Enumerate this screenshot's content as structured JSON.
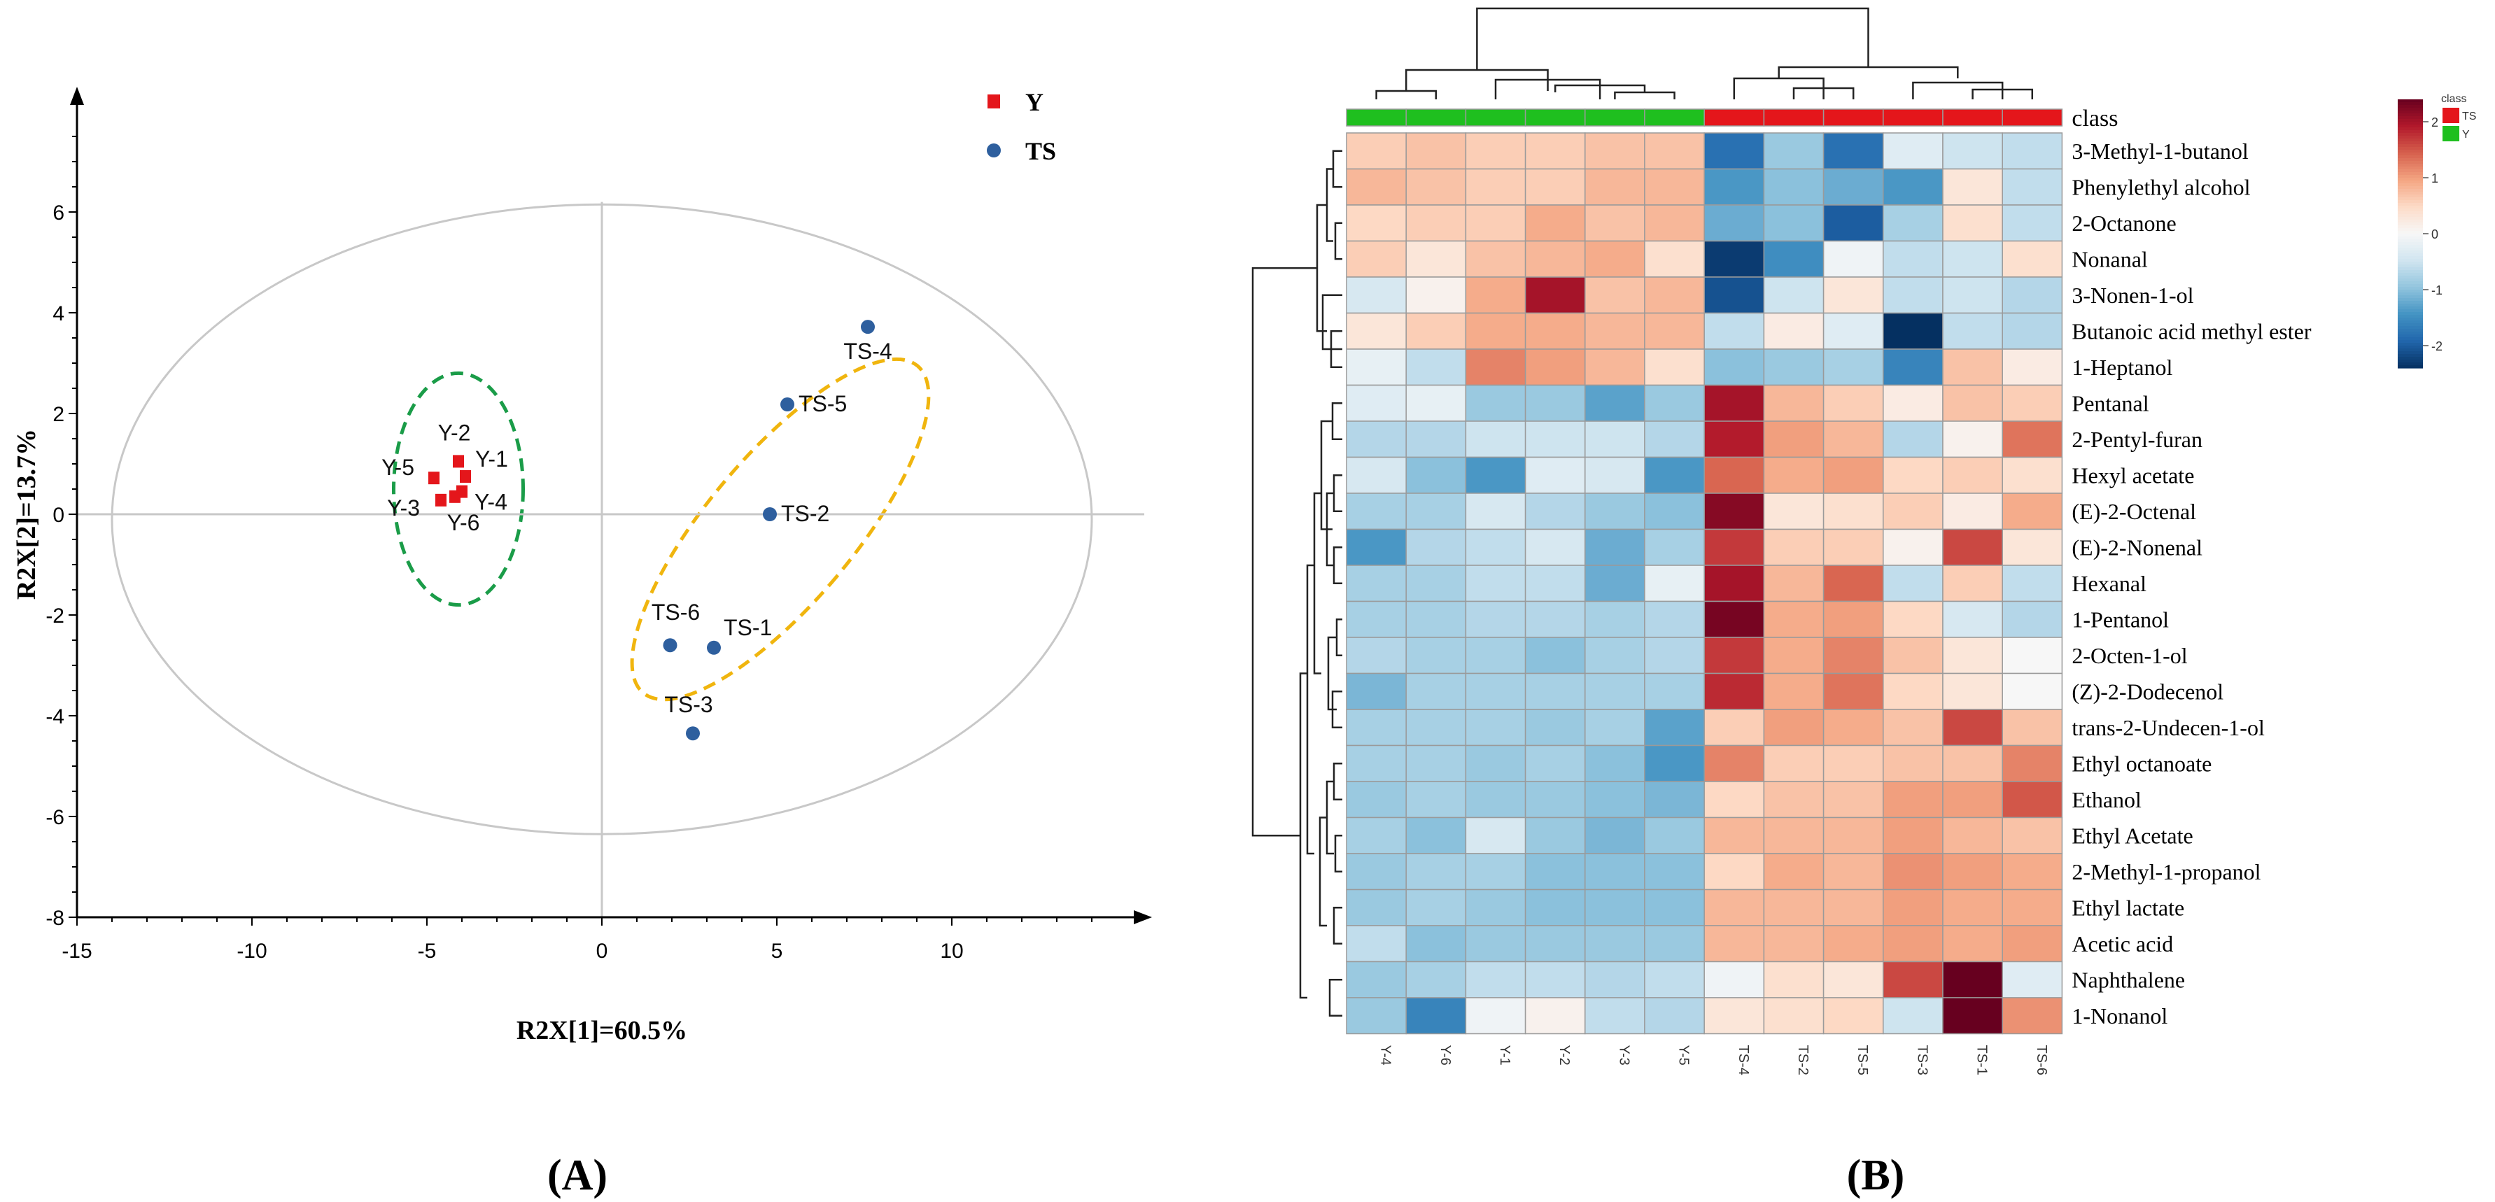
{
  "panels": {
    "a_label": "(A)",
    "b_label": "(B)"
  },
  "chart_data": [
    {
      "type": "scatter",
      "title": "",
      "xlabel": "R2X[1]=60.5%",
      "ylabel": "R2X[2]=13.7%",
      "xlim": [
        -15,
        15
      ],
      "ylim": [
        -8,
        8
      ],
      "xticks": [
        "-15",
        "-10",
        "-5",
        "0",
        "5",
        "10"
      ],
      "xtick_values": [
        -15,
        -10,
        -5,
        0,
        5,
        10
      ],
      "yticks": [
        "6",
        "4",
        "2",
        "0",
        "-2",
        "-4",
        "-6",
        "-8"
      ],
      "ytick_values": [
        6,
        4,
        2,
        0,
        -2,
        -4,
        -6,
        -8
      ],
      "grid": false,
      "legend_position": "top-right",
      "series": [
        {
          "name": "Y",
          "color": "#e4161b",
          "marker": "square",
          "points": [
            {
              "label": "Y-1",
              "x": -3.9,
              "y": 0.75
            },
            {
              "label": "Y-2",
              "x": -4.1,
              "y": 1.05
            },
            {
              "label": "Y-3",
              "x": -4.6,
              "y": 0.28
            },
            {
              "label": "Y-4",
              "x": -4.0,
              "y": 0.45
            },
            {
              "label": "Y-5",
              "x": -4.8,
              "y": 0.72
            },
            {
              "label": "Y-6",
              "x": -4.2,
              "y": 0.35
            }
          ]
        },
        {
          "name": "TS",
          "color": "#2e5f9e",
          "marker": "circle",
          "points": [
            {
              "label": "TS-1",
              "x": 3.2,
              "y": -2.65
            },
            {
              "label": "TS-2",
              "x": 4.8,
              "y": 0.0
            },
            {
              "label": "TS-3",
              "x": 2.6,
              "y": -4.35
            },
            {
              "label": "TS-4",
              "x": 7.6,
              "y": 3.72
            },
            {
              "label": "TS-5",
              "x": 5.3,
              "y": 2.18
            },
            {
              "label": "TS-6",
              "x": 1.95,
              "y": -2.6
            }
          ]
        }
      ],
      "ellipses": [
        {
          "cx": 0,
          "cy": -0.1,
          "rx": 14,
          "ry": 6.25,
          "color": "#c8c8c8",
          "style": "solid"
        },
        {
          "cx": -4.1,
          "cy": 0.5,
          "rx": 1.85,
          "ry": 2.3,
          "color": "#1a9c48",
          "style": "dashed"
        },
        {
          "cx": 5.1,
          "cy": -0.3,
          "rx": 3.3,
          "ry": 5.0,
          "color": "#f0b50e",
          "style": "dashed",
          "rotation_deg": 40
        }
      ]
    },
    {
      "type": "heatmap",
      "title": "",
      "columns": [
        "Y-4",
        "Y-6",
        "Y-1",
        "Y-2",
        "Y-3",
        "Y-5",
        "TS-4",
        "TS-2",
        "TS-5",
        "TS-3",
        "TS-1",
        "TS-6"
      ],
      "column_classes": [
        "Y",
        "Y",
        "Y",
        "Y",
        "Y",
        "Y",
        "TS",
        "TS",
        "TS",
        "TS",
        "TS",
        "TS"
      ],
      "class_label": "class",
      "legend": {
        "title": "class",
        "entries": [
          {
            "name": "TS",
            "color": "#e4161b"
          },
          {
            "name": "Y",
            "color": "#1fbf1f"
          }
        ]
      },
      "colorbar": {
        "range": [
          -2.4,
          2.4
        ],
        "ticks": [
          "2",
          "1",
          "0",
          "-1",
          "-2"
        ],
        "tick_values": [
          2,
          1,
          0,
          -1,
          -2
        ],
        "colors": [
          "#053061",
          "#2166ac",
          "#4393c3",
          "#92c5de",
          "#d1e5f0",
          "#f7f7f7",
          "#fddbc7",
          "#f4a582",
          "#d6604d",
          "#b2182b",
          "#67001f"
        ]
      },
      "rows": [
        "3-Methyl-1-butanol",
        "Phenylethyl alcohol",
        "2-Octanone",
        "Nonanal",
        "3-Nonen-1-ol",
        "Butanoic acid methyl ester",
        "1-Heptanol",
        "Pentanal",
        "2-Pentyl-furan",
        "Hexyl acetate",
        "(E)-2-Octenal",
        "(E)-2-Nonenal",
        "Hexanal",
        "1-Pentanol",
        "2-Octen-1-ol",
        "(Z)-2-Dodecenol",
        "trans-2-Undecen-1-ol",
        "Ethyl octanoate",
        "Ethanol",
        "Ethyl Acetate",
        "2-Methyl-1-propanol",
        "Ethyl lactate",
        "Acetic acid",
        "Naphthalene",
        "1-Nonanol"
      ],
      "values": [
        [
          0.6,
          0.7,
          0.6,
          0.6,
          0.7,
          0.7,
          -1.8,
          -0.9,
          -1.8,
          -0.3,
          -0.5,
          -0.6
        ],
        [
          0.8,
          0.7,
          0.6,
          0.6,
          0.8,
          0.8,
          -1.4,
          -1.0,
          -1.2,
          -1.4,
          0.3,
          -0.6
        ],
        [
          0.5,
          0.6,
          0.6,
          0.9,
          0.7,
          0.8,
          -1.2,
          -1.0,
          -2.0,
          -0.8,
          0.4,
          -0.6
        ],
        [
          0.6,
          0.3,
          0.7,
          0.8,
          0.9,
          0.4,
          -2.3,
          -1.5,
          -0.1,
          -0.6,
          -0.5,
          0.4
        ],
        [
          -0.4,
          0.1,
          0.9,
          2.0,
          0.7,
          0.8,
          -2.1,
          -0.5,
          0.3,
          -0.6,
          -0.5,
          -0.7
        ],
        [
          0.3,
          0.6,
          0.9,
          0.9,
          0.8,
          0.8,
          -0.6,
          0.2,
          -0.3,
          -2.5,
          -0.6,
          -0.7
        ],
        [
          -0.2,
          -0.6,
          1.2,
          1.0,
          0.8,
          0.4,
          -1.0,
          -0.9,
          -0.8,
          -1.6,
          0.7,
          0.2
        ],
        [
          -0.3,
          -0.2,
          -0.9,
          -0.9,
          -1.3,
          -0.9,
          2.0,
          0.8,
          0.6,
          0.2,
          0.7,
          0.6
        ],
        [
          -0.7,
          -0.7,
          -0.5,
          -0.5,
          -0.5,
          -0.7,
          1.9,
          1.0,
          0.8,
          -0.7,
          0.1,
          1.3
        ],
        [
          -0.4,
          -1.0,
          -1.4,
          -0.3,
          -0.4,
          -1.4,
          1.4,
          0.9,
          1.0,
          0.5,
          0.6,
          0.4
        ],
        [
          -0.8,
          -0.8,
          -0.4,
          -0.7,
          -0.9,
          -1.0,
          2.2,
          0.3,
          0.4,
          0.6,
          0.2,
          0.9
        ],
        [
          -1.4,
          -0.7,
          -0.6,
          -0.4,
          -1.2,
          -0.8,
          1.7,
          0.6,
          0.6,
          0.1,
          1.6,
          0.3
        ],
        [
          -0.8,
          -0.8,
          -0.6,
          -0.6,
          -1.2,
          -0.2,
          2.0,
          0.8,
          1.4,
          -0.6,
          0.6,
          -0.6
        ],
        [
          -0.8,
          -0.8,
          -0.7,
          -0.7,
          -0.8,
          -0.7,
          2.3,
          0.9,
          1.0,
          0.5,
          -0.4,
          -0.7
        ],
        [
          -0.7,
          -0.8,
          -0.8,
          -1.0,
          -0.8,
          -0.7,
          1.7,
          0.9,
          1.2,
          0.7,
          0.3,
          0.0
        ],
        [
          -1.1,
          -0.8,
          -0.8,
          -0.8,
          -0.8,
          -0.8,
          1.8,
          0.9,
          1.3,
          0.5,
          0.3,
          0.0
        ],
        [
          -0.8,
          -0.8,
          -0.8,
          -0.9,
          -0.8,
          -1.3,
          0.6,
          1.0,
          0.9,
          0.7,
          1.6,
          0.7
        ],
        [
          -0.8,
          -0.8,
          -0.9,
          -0.8,
          -1.0,
          -1.4,
          1.2,
          0.6,
          0.6,
          0.7,
          0.7,
          1.2
        ],
        [
          -0.9,
          -0.8,
          -0.9,
          -0.9,
          -1.0,
          -1.1,
          0.5,
          0.7,
          0.7,
          1.0,
          1.0,
          1.5
        ],
        [
          -0.8,
          -1.0,
          -0.4,
          -0.9,
          -1.1,
          -0.9,
          0.8,
          0.8,
          0.8,
          1.0,
          0.8,
          0.7
        ],
        [
          -0.9,
          -0.8,
          -0.8,
          -1.0,
          -1.0,
          -1.0,
          0.5,
          0.9,
          0.8,
          1.1,
          1.0,
          0.9
        ],
        [
          -0.9,
          -0.8,
          -0.9,
          -1.0,
          -1.0,
          -1.0,
          0.8,
          0.8,
          0.8,
          1.0,
          0.9,
          0.9
        ],
        [
          -0.6,
          -1.0,
          -0.9,
          -0.9,
          -0.9,
          -0.9,
          0.8,
          0.8,
          0.9,
          1.0,
          0.9,
          1.0
        ],
        [
          -0.9,
          -0.8,
          -0.6,
          -0.6,
          -0.7,
          -0.6,
          -0.1,
          0.4,
          0.3,
          1.6,
          2.4,
          -0.3
        ],
        [
          -0.9,
          -1.6,
          -0.1,
          0.1,
          -0.6,
          -0.7,
          0.3,
          0.4,
          0.5,
          -0.5,
          2.4,
          1.1
        ]
      ]
    }
  ]
}
